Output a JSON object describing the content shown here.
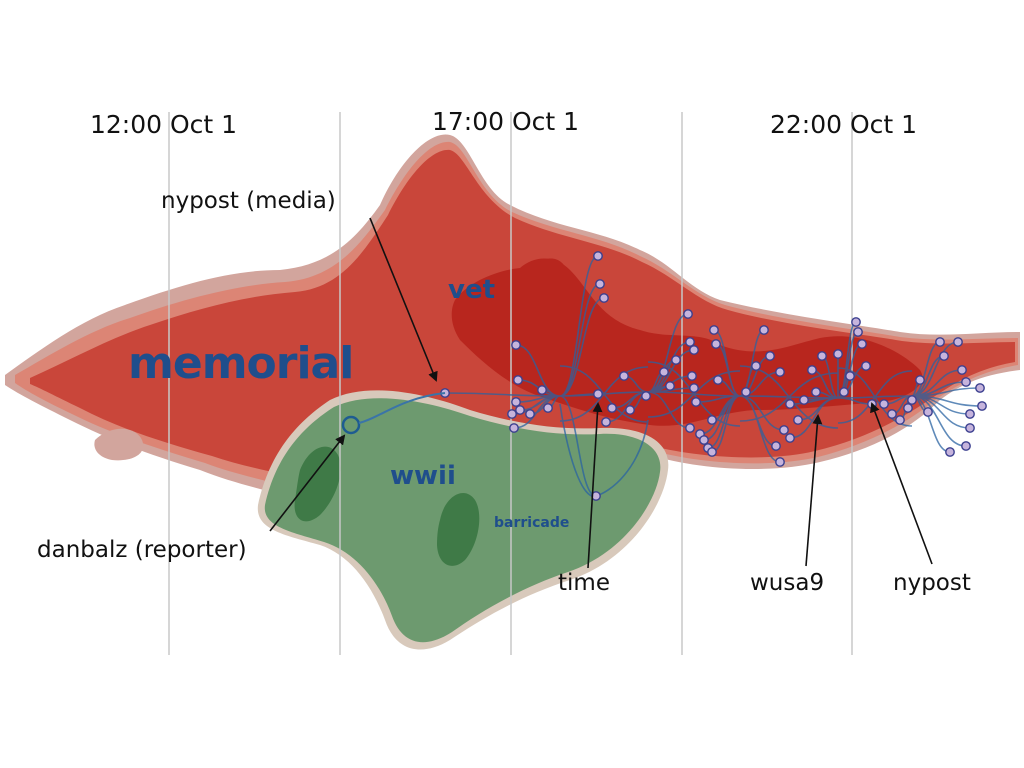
{
  "time_axis": {
    "labels": [
      "12:00 Oct 1",
      "17:00 Oct 1",
      "22:00 Oct 1"
    ]
  },
  "topics": {
    "memorial": "memorial",
    "vet": "vet",
    "wwii": "wwii",
    "barricade": "barricade"
  },
  "annotations": {
    "nypost_media": "nypost (media)",
    "danbalz": "danbalz (reporter)",
    "time": "time",
    "wusa9": "wusa9",
    "nypost": "nypost"
  },
  "colors": {
    "memorial_outer": "#d2a59d",
    "memorial_mid": "#dc8575",
    "memorial_main": "#c9463a",
    "memorial_core": "#b8261e",
    "wwii_outer": "#d8c9bb",
    "wwii_main": "#6d9a6f",
    "wwii_core": "#3f7a47",
    "topic_text": "#1f4e8c",
    "network_edge": "#2a63a1",
    "node_fill": "#c6b4dc",
    "node_stroke": "#3b3f8f",
    "gridline": "#c8c8c8"
  }
}
